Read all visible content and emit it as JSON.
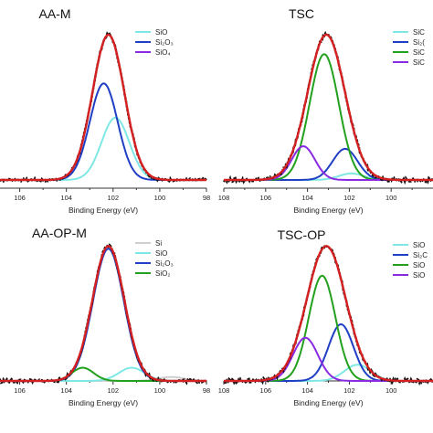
{
  "colors": {
    "envelope": "#d42020",
    "experimental": "#111111",
    "SiO": "#7fe8e4",
    "Si2O3": "#1f3fc4",
    "SiO2": "#22a01e",
    "SiO4": "#8a2be2",
    "Si": "#cfcfcf"
  },
  "chart_data": [
    {
      "type": "line",
      "title": "AA-M",
      "xlabel": "Binding Energy (eV)",
      "ylabel": "",
      "x_reversed": true,
      "xlim": [
        98,
        107
      ],
      "xticks": [
        "106",
        "104",
        "102",
        "100",
        "98"
      ],
      "legend_position": "top-right",
      "legend": [
        {
          "label": "SiO",
          "color_key": "SiO"
        },
        {
          "label": "Si₂O₃",
          "color_key": "Si2O3"
        },
        {
          "label": "SiO₄",
          "color_key": "SiO4"
        }
      ],
      "series": [
        {
          "name": "SiO",
          "color_key": "SiO",
          "peak": {
            "center": 101.9,
            "height": 0.6,
            "fwhm": 1.4
          }
        },
        {
          "name": "Si₂O₃",
          "color_key": "Si2O3",
          "peak": {
            "center": 102.4,
            "height": 0.93,
            "fwhm": 1.4
          }
        },
        {
          "name": "SiO₄",
          "color_key": "SiO4",
          "peak": {
            "center": 101.0,
            "height": 0.0,
            "fwhm": 1.5
          }
        }
      ],
      "envelope_peak": {
        "center": 102.2,
        "height": 1.4,
        "fwhm": 1.6
      }
    },
    {
      "type": "line",
      "title": "TSC",
      "xlabel": "Binding Energy (eV)",
      "ylabel": "",
      "x_reversed": true,
      "xlim": [
        98,
        108
      ],
      "xticks": [
        "108",
        "106",
        "104",
        "102",
        "100"
      ],
      "legend_position": "top-right",
      "legend": [
        {
          "label": "SiC",
          "color_key": "SiO"
        },
        {
          "label": "Si₂(",
          "color_key": "Si2O3"
        },
        {
          "label": "SiC",
          "color_key": "SiO2"
        },
        {
          "label": "SiC",
          "color_key": "SiO4"
        }
      ],
      "series": [
        {
          "name": "SiC",
          "color_key": "SiO",
          "peak": {
            "center": 101.9,
            "height": 0.05,
            "fwhm": 1.4
          }
        },
        {
          "name": "Si₂(",
          "color_key": "Si2O3",
          "peak": {
            "center": 102.2,
            "height": 0.24,
            "fwhm": 1.4
          }
        },
        {
          "name": "SiC",
          "color_key": "SiO2",
          "peak": {
            "center": 103.2,
            "height": 0.97,
            "fwhm": 1.65
          }
        },
        {
          "name": "SiC",
          "color_key": "SiO4",
          "peak": {
            "center": 104.2,
            "height": 0.26,
            "fwhm": 1.3
          }
        }
      ],
      "envelope_peak": {
        "center": 103.1,
        "height": 1.12,
        "fwhm": 2.1
      }
    },
    {
      "type": "line",
      "title": "AA-OP-M",
      "xlabel": "Binding Energy (eV)",
      "ylabel": "",
      "x_reversed": true,
      "xlim": [
        98,
        107
      ],
      "xticks": [
        "106",
        "104",
        "102",
        "100",
        "98"
      ],
      "legend_position": "top-right",
      "legend": [
        {
          "label": "Si",
          "color_key": "Si"
        },
        {
          "label": "SiO",
          "color_key": "SiO"
        },
        {
          "label": "Si₂O₃",
          "color_key": "Si2O3"
        },
        {
          "label": "SiO₂",
          "color_key": "SiO2"
        }
      ],
      "series": [
        {
          "name": "Si",
          "color_key": "Si",
          "peak": {
            "center": 99.5,
            "height": 0.03,
            "fwhm": 1.3
          }
        },
        {
          "name": "SiO",
          "color_key": "SiO",
          "peak": {
            "center": 101.2,
            "height": 0.1,
            "fwhm": 1.3
          }
        },
        {
          "name": "Si₂O₃",
          "color_key": "Si2O3",
          "peak": {
            "center": 102.2,
            "height": 1.0,
            "fwhm": 1.55
          }
        },
        {
          "name": "SiO₂",
          "color_key": "SiO2",
          "peak": {
            "center": 103.3,
            "height": 0.1,
            "fwhm": 1.1
          }
        }
      ],
      "envelope_peak": {
        "center": 102.2,
        "height": 1.02,
        "fwhm": 1.6
      }
    },
    {
      "type": "line",
      "title": "TSC-OP",
      "xlabel": "Binding Energy (eV)",
      "ylabel": "",
      "x_reversed": true,
      "xlim": [
        98,
        108
      ],
      "xticks": [
        "108",
        "106",
        "104",
        "102",
        "100"
      ],
      "legend_position": "top-right",
      "legend": [
        {
          "label": "SiO",
          "color_key": "SiO"
        },
        {
          "label": "Si₂C",
          "color_key": "Si2O3"
        },
        {
          "label": "SiO",
          "color_key": "SiO2"
        },
        {
          "label": "SiO",
          "color_key": "SiO4"
        }
      ],
      "series": [
        {
          "name": "SiO",
          "color_key": "SiO",
          "peak": {
            "center": 101.6,
            "height": 0.12,
            "fwhm": 1.5
          }
        },
        {
          "name": "Si₂C",
          "color_key": "Si2O3",
          "peak": {
            "center": 102.4,
            "height": 0.42,
            "fwhm": 1.4
          }
        },
        {
          "name": "SiO",
          "color_key": "SiO2",
          "peak": {
            "center": 103.3,
            "height": 0.78,
            "fwhm": 1.5
          }
        },
        {
          "name": "SiO",
          "color_key": "SiO4",
          "peak": {
            "center": 104.1,
            "height": 0.32,
            "fwhm": 1.4
          }
        }
      ],
      "envelope_peak": {
        "center": 103.1,
        "height": 1.0,
        "fwhm": 2.2
      }
    }
  ]
}
